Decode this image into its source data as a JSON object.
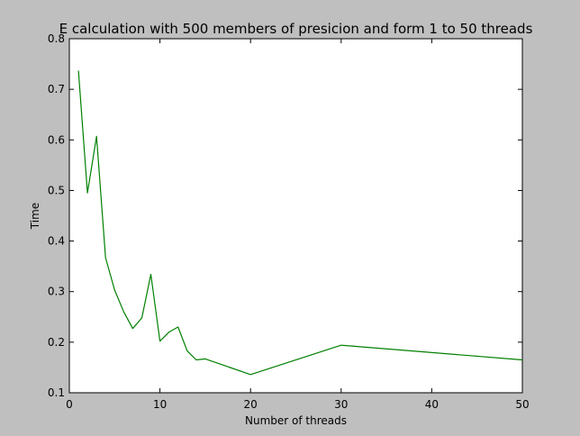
{
  "chart_data": {
    "type": "line",
    "title": "E calculation with 500 members of presicion and form 1 to 50 threads",
    "xlabel": "Number of threads",
    "ylabel": "Time",
    "xlim": [
      0,
      50
    ],
    "ylim": [
      0.1,
      0.8
    ],
    "grid": false,
    "x_ticks": [
      "0",
      "10",
      "20",
      "30",
      "40",
      "50"
    ],
    "y_ticks": [
      "0.1",
      "0.2",
      "0.3",
      "0.4",
      "0.5",
      "0.6",
      "0.7",
      "0.8"
    ],
    "series": [
      {
        "color": "#008000",
        "x": [
          1,
          2,
          3,
          4,
          5,
          6,
          7,
          8,
          9,
          10,
          11,
          12,
          13,
          14,
          15,
          20,
          30,
          50
        ],
        "y": [
          0.737,
          0.495,
          0.607,
          0.367,
          0.303,
          0.26,
          0.227,
          0.248,
          0.334,
          0.202,
          0.22,
          0.23,
          0.183,
          0.165,
          0.167,
          0.136,
          0.194,
          0.165
        ]
      }
    ]
  }
}
